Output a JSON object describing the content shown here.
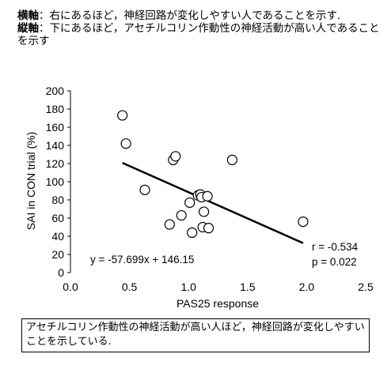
{
  "caption": {
    "horizontal_label": "横軸",
    "horizontal_text": "：右にあるほど，神経回路が変化しやすい人であることを示す.",
    "vertical_label": "縦軸",
    "vertical_text": "：下にあるほど，アセチルコリン作動性の神経活動が高い人であることを示す"
  },
  "note": "アセチルコリン作動性の神経活動が高い人ほど，神経回路が変化しやすいことを示している.",
  "chart_data": {
    "type": "scatter",
    "xlabel": "PAS25 response",
    "ylabel": "SAI in CON trial (%)",
    "xlim": [
      0,
      2.5
    ],
    "ylim": [
      0,
      200
    ],
    "x_ticks": [
      "0.0",
      "0.5",
      "1.0",
      "1.5",
      "2.0",
      "2.5"
    ],
    "y_ticks": [
      "0",
      "20",
      "40",
      "60",
      "80",
      "100",
      "120",
      "140",
      "160",
      "180",
      "200"
    ],
    "points": [
      {
        "x": 0.44,
        "y": 173
      },
      {
        "x": 0.47,
        "y": 142
      },
      {
        "x": 0.63,
        "y": 91
      },
      {
        "x": 0.84,
        "y": 53
      },
      {
        "x": 0.87,
        "y": 124
      },
      {
        "x": 0.89,
        "y": 128
      },
      {
        "x": 0.94,
        "y": 63
      },
      {
        "x": 1.01,
        "y": 77
      },
      {
        "x": 1.03,
        "y": 44
      },
      {
        "x": 1.08,
        "y": 85
      },
      {
        "x": 1.1,
        "y": 86
      },
      {
        "x": 1.11,
        "y": 83
      },
      {
        "x": 1.12,
        "y": 50
      },
      {
        "x": 1.13,
        "y": 67
      },
      {
        "x": 1.16,
        "y": 84
      },
      {
        "x": 1.17,
        "y": 49
      },
      {
        "x": 1.37,
        "y": 124
      },
      {
        "x": 1.97,
        "y": 56
      }
    ],
    "trendline": {
      "slope": -57.699,
      "intercept": 146.15,
      "x_range": [
        0.44,
        1.97
      ]
    },
    "equation_label": "y = -57.699x + 146.15",
    "r_label": "r = -0.534",
    "p_label": "p = 0.022",
    "grid": false,
    "marker_color": "#000000"
  }
}
